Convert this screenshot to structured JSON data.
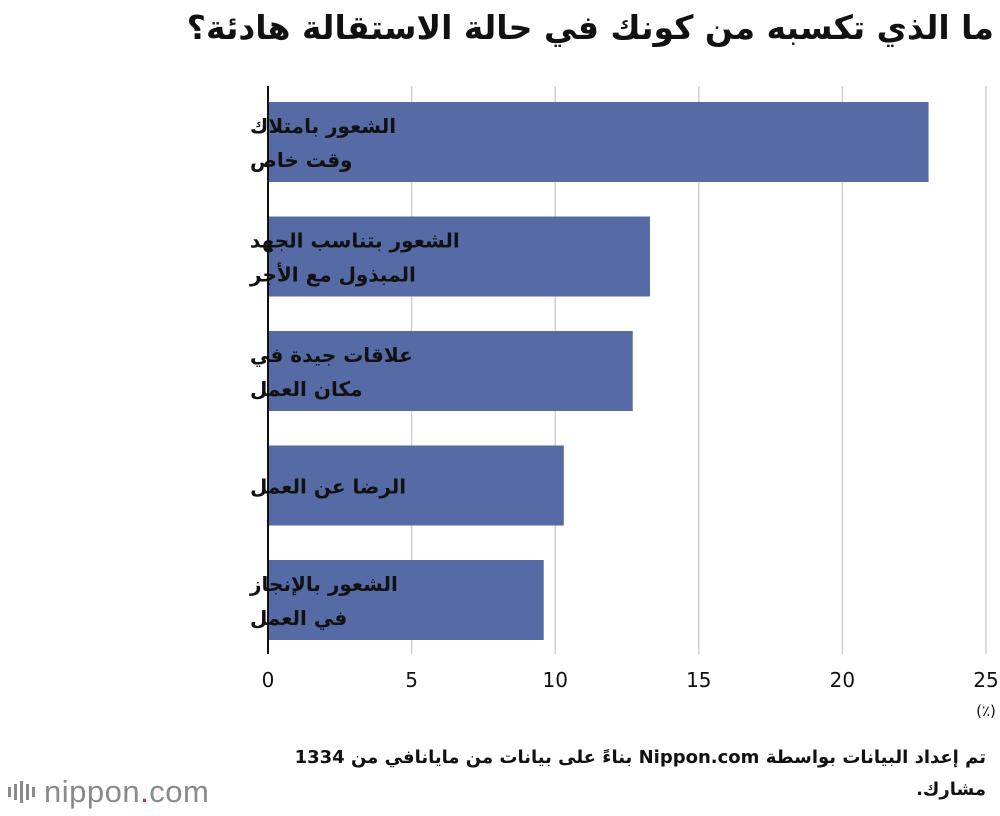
{
  "title": "ما الذي تكسبه من كونك في حالة الاستقالة هادئة؟",
  "chart_data": {
    "type": "bar",
    "orientation": "horizontal",
    "categories": [
      [
        "الشعور بامتلاك",
        "وقت خاص"
      ],
      [
        "الشعور بتناسب الجهد",
        "المبذول مع الأجر"
      ],
      [
        "علاقات جيدة في",
        "مكان العمل"
      ],
      [
        "الرضا عن العمل"
      ],
      [
        "الشعور بالإنجاز",
        "في العمل"
      ]
    ],
    "values": [
      23.0,
      13.3,
      12.7,
      10.3,
      9.6
    ],
    "xlim": [
      0,
      25
    ],
    "xticks": [
      0,
      5,
      10,
      15,
      20,
      25
    ],
    "xlabel": "(٪)",
    "bar_color": "#566aa6",
    "grid": true
  },
  "source": "تم إعداد البيانات بواسطة Nippon.com بناءً على بيانات من مايانافي من 1334 مشارك.",
  "logo": {
    "name": "nippon",
    "dot": ".",
    "domain": "com"
  },
  "colors": {
    "bar": "#566aa6",
    "grid": "#d0d0d0",
    "axis": "#111111",
    "logo": "#8a8a8a",
    "logo_accent": "#d7263d"
  }
}
